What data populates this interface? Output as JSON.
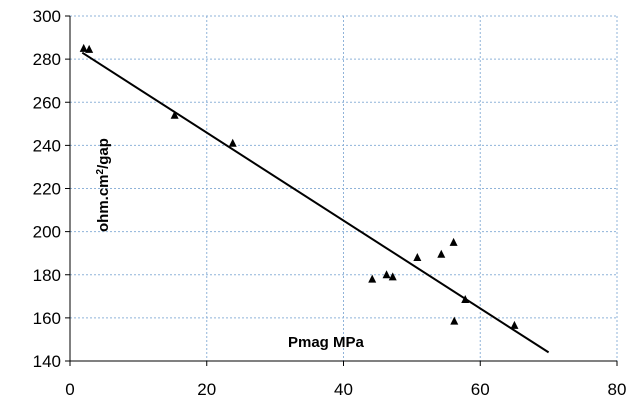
{
  "chart_data": {
    "type": "scatter",
    "xlabel": "Pmag MPa",
    "ylabel_parts": {
      "base": "ohm.cm",
      "sup": "2",
      "tail": "/gap"
    },
    "xlim": [
      0,
      80
    ],
    "ylim": [
      140,
      300
    ],
    "x_ticks": [
      0,
      20,
      40,
      60,
      80
    ],
    "y_ticks": [
      140,
      160,
      180,
      200,
      220,
      240,
      260,
      280,
      300
    ],
    "x_tick_labels": [
      "0",
      "20",
      "40",
      "60",
      "80"
    ],
    "y_tick_labels": [
      "140",
      "160",
      "180",
      "200",
      "220",
      "240",
      "260",
      "280",
      "300"
    ],
    "grid": {
      "x": true,
      "y": true,
      "style": "dotted",
      "color": "#8fb3d9"
    },
    "series": [
      {
        "marker": "triangle",
        "color": "#000000",
        "points": [
          [
            2,
            285
          ],
          [
            2.8,
            284.5
          ],
          [
            15.3,
            254
          ],
          [
            23.8,
            241
          ],
          [
            44.2,
            178
          ],
          [
            46.3,
            180
          ],
          [
            47.2,
            179
          ],
          [
            50.8,
            188
          ],
          [
            54.3,
            189.5
          ],
          [
            56.1,
            195
          ],
          [
            56.2,
            158.5
          ],
          [
            57.8,
            168.5
          ],
          [
            65,
            156.5
          ]
        ]
      }
    ],
    "trendline": {
      "color": "#000000",
      "from": [
        1.8,
        283
      ],
      "to": [
        70,
        144
      ]
    }
  }
}
